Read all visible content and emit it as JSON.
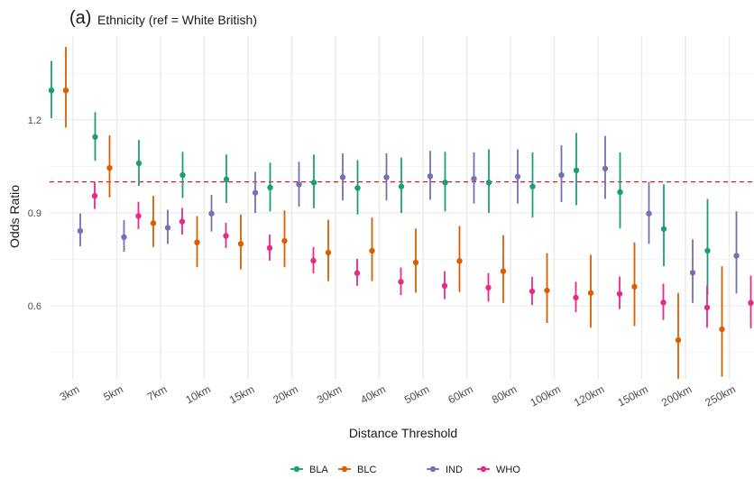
{
  "chart_data": {
    "type": "scatter",
    "panel_label": "(a)",
    "title": "Ethnicity (ref = White British)",
    "xlabel": "Distance Threshold",
    "ylabel": "Odds Ratio",
    "categories": [
      "3km",
      "5km",
      "7km",
      "10km",
      "15km",
      "20km",
      "30km",
      "40km",
      "50km",
      "60km",
      "80km",
      "100km",
      "120km",
      "150km",
      "200km",
      "250km"
    ],
    "y_ticks": [
      0.6,
      0.9,
      1.2
    ],
    "y_tick_labels": [
      "0.6",
      "0.9",
      "1.2"
    ],
    "ylim": [
      0.365,
      1.47
    ],
    "reference_line": {
      "y": 1.0,
      "color": "#E41A1C",
      "style": "dashed"
    },
    "legend_position": "bottom",
    "grid": true,
    "series": [
      {
        "name": "BLA",
        "color": "#1B9E77",
        "x_label": [
          "3km",
          "5km",
          "7km",
          "10km",
          "15km",
          "20km",
          "30km",
          "40km",
          "50km",
          "60km",
          "80km",
          "100km",
          "120km",
          "150km",
          "200km",
          "250km"
        ],
        "estimate": [
          1.295,
          1.145,
          1.06,
          1.022,
          1.008,
          0.982,
          0.998,
          0.98,
          0.985,
          0.998,
          0.998,
          0.985,
          1.037,
          0.967,
          0.848,
          0.778
        ],
        "lower": [
          1.205,
          1.068,
          0.987,
          0.948,
          0.932,
          0.905,
          0.915,
          0.895,
          0.9,
          0.905,
          0.9,
          0.885,
          0.925,
          0.85,
          0.728,
          0.635
        ],
        "upper": [
          1.39,
          1.225,
          1.135,
          1.097,
          1.088,
          1.062,
          1.088,
          1.07,
          1.078,
          1.097,
          1.105,
          1.095,
          1.158,
          1.095,
          0.992,
          0.945
        ]
      },
      {
        "name": "BLC",
        "color": "#D95F02",
        "x_label": [
          "3km",
          "5km",
          "7km",
          "10km",
          "15km",
          "20km",
          "30km",
          "40km",
          "50km",
          "60km",
          "80km",
          "100km",
          "120km",
          "150km",
          "200km",
          "250km"
        ],
        "estimate": [
          1.295,
          1.045,
          0.867,
          0.805,
          0.8,
          0.81,
          0.772,
          0.778,
          0.74,
          0.745,
          0.712,
          0.65,
          0.642,
          0.662,
          0.49,
          0.525
        ],
        "lower": [
          1.175,
          0.95,
          0.79,
          0.725,
          0.718,
          0.725,
          0.68,
          0.68,
          0.643,
          0.645,
          0.61,
          0.545,
          0.53,
          0.535,
          0.365,
          0.372
        ],
        "upper": [
          1.435,
          1.15,
          0.955,
          0.89,
          0.895,
          0.908,
          0.878,
          0.885,
          0.85,
          0.858,
          0.828,
          0.77,
          0.765,
          0.805,
          0.642,
          0.728
        ]
      },
      {
        "name": "IND",
        "color": "#7570B3",
        "x_label": [
          "3km",
          "5km",
          "7km",
          "10km",
          "15km",
          "20km",
          "30km",
          "40km",
          "50km",
          "60km",
          "80km",
          "100km",
          "120km",
          "150km",
          "200km",
          "250km"
        ],
        "estimate": [
          0.842,
          0.822,
          0.852,
          0.898,
          0.965,
          0.992,
          1.015,
          1.015,
          1.018,
          1.01,
          1.017,
          1.022,
          1.043,
          0.898,
          0.707,
          0.762
        ],
        "lower": [
          0.792,
          0.775,
          0.8,
          0.84,
          0.9,
          0.92,
          0.94,
          0.94,
          0.942,
          0.93,
          0.93,
          0.935,
          0.945,
          0.8,
          0.61,
          0.64
        ],
        "upper": [
          0.898,
          0.877,
          0.91,
          0.958,
          1.032,
          1.065,
          1.092,
          1.092,
          1.1,
          1.095,
          1.105,
          1.118,
          1.148,
          1.0,
          0.815,
          0.905
        ]
      },
      {
        "name": "WHO",
        "color": "#E7298A",
        "x_label": [
          "3km",
          "5km",
          "7km",
          "10km",
          "15km",
          "20km",
          "30km",
          "40km",
          "50km",
          "60km",
          "80km",
          "100km",
          "120km",
          "150km",
          "200km",
          "250km"
        ],
        "estimate": [
          0.955,
          0.89,
          0.872,
          0.826,
          0.787,
          0.746,
          0.706,
          0.678,
          0.665,
          0.659,
          0.647,
          0.627,
          0.639,
          0.611,
          0.595,
          0.61
        ],
        "lower": [
          0.913,
          0.848,
          0.83,
          0.787,
          0.746,
          0.705,
          0.665,
          0.635,
          0.622,
          0.614,
          0.603,
          0.58,
          0.59,
          0.555,
          0.53,
          0.528
        ],
        "upper": [
          1.0,
          0.936,
          0.916,
          0.868,
          0.83,
          0.79,
          0.752,
          0.724,
          0.712,
          0.706,
          0.694,
          0.678,
          0.695,
          0.672,
          0.665,
          0.698
        ]
      }
    ]
  }
}
